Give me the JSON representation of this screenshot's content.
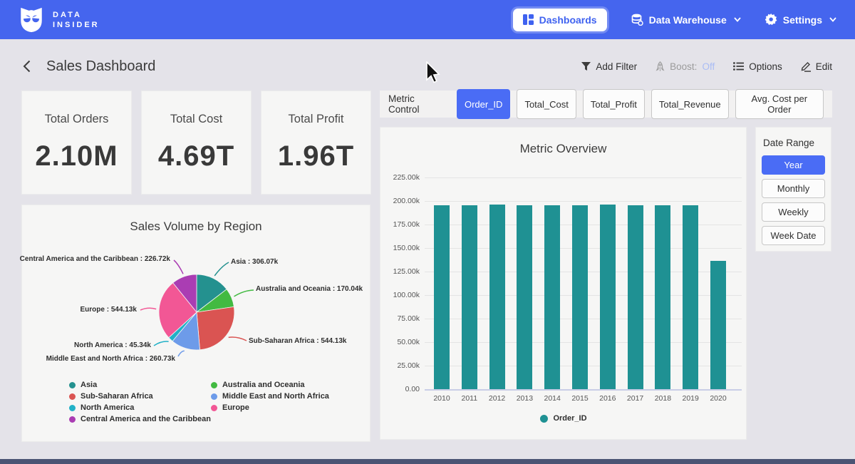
{
  "navbar": {
    "brand_line1": "DATA",
    "brand_line2": "INSIDER",
    "dashboards_label": "Dashboards",
    "data_warehouse_label": "Data Warehouse",
    "settings_label": "Settings"
  },
  "subheader": {
    "title": "Sales Dashboard",
    "add_filter_label": "Add Filter",
    "boost_label": "Boost:",
    "boost_value": "Off",
    "options_label": "Options",
    "edit_label": "Edit"
  },
  "kpis": [
    {
      "label": "Total Orders",
      "value": "2.10M"
    },
    {
      "label": "Total Cost",
      "value": "4.69T"
    },
    {
      "label": "Total Profit",
      "value": "1.96T"
    }
  ],
  "metric_control": {
    "label": "Metric Control",
    "buttons": [
      {
        "label": "Order_ID",
        "active": true
      },
      {
        "label": "Total_Cost",
        "active": false
      },
      {
        "label": "Total_Profit",
        "active": false
      },
      {
        "label": "Total_Revenue",
        "active": false
      },
      {
        "label": "Avg. Cost per Order",
        "active": false
      }
    ]
  },
  "date_range": {
    "label": "Date Range",
    "buttons": [
      {
        "label": "Year",
        "active": true
      },
      {
        "label": "Monthly",
        "active": false
      },
      {
        "label": "Weekly",
        "active": false
      },
      {
        "label": "Week Date",
        "active": false
      }
    ]
  },
  "colors": {
    "navbar": "#4565ee",
    "accent": "#4a6cf5",
    "background": "#e4e3e9",
    "card": "#f6f6f5"
  },
  "chart_data": [
    {
      "type": "pie",
      "title": "Sales Volume by Region",
      "unit": "k",
      "slices": [
        {
          "name": "Asia",
          "value_k": 306.07,
          "label": "Asia : 306.07k",
          "color": "#24918f"
        },
        {
          "name": "Australia and Oceania",
          "value_k": 170.04,
          "label": "Australia and Oceania : 170.04k",
          "color": "#42ba41"
        },
        {
          "name": "Sub-Saharan Africa",
          "value_k": 544.13,
          "label": "Sub-Saharan Africa : 544.13k",
          "color": "#da5452"
        },
        {
          "name": "Middle East and North Africa",
          "value_k": 260.73,
          "label": "Middle East and North Africa : 260.73k",
          "color": "#6d9be9"
        },
        {
          "name": "North America",
          "value_k": 45.34,
          "label": "North America : 45.34k",
          "color": "#21b1c7"
        },
        {
          "name": "Europe",
          "value_k": 544.13,
          "label": "Europe : 544.13k",
          "color": "#f25795"
        },
        {
          "name": "Central America and the Caribbean",
          "value_k": 226.72,
          "label": "Central America and the Caribbean : 226.72k",
          "color": "#aa3db3"
        }
      ],
      "legend_columns": [
        [
          0,
          2,
          4,
          6
        ],
        [
          1,
          3,
          5
        ]
      ],
      "legend_position": "bottom"
    },
    {
      "type": "bar",
      "title": "Metric Overview",
      "categories": [
        "2010",
        "2011",
        "2012",
        "2013",
        "2014",
        "2015",
        "2016",
        "2017",
        "2018",
        "2019",
        "2020"
      ],
      "series": [
        {
          "name": "Order_ID",
          "color": "#1f9193",
          "values_k": [
            195.5,
            195.4,
            196.3,
            195.3,
            195.5,
            195.3,
            196.2,
            195.5,
            195.3,
            195.5,
            136.3
          ]
        }
      ],
      "yticks": [
        "225.00k",
        "200.00k",
        "175.00k",
        "150.00k",
        "125.00k",
        "100.00k",
        "75.00k",
        "50.00k",
        "25.00k",
        "0.00"
      ],
      "ylim_k": [
        0,
        225
      ],
      "grid": true,
      "legend_position": "bottom"
    }
  ]
}
